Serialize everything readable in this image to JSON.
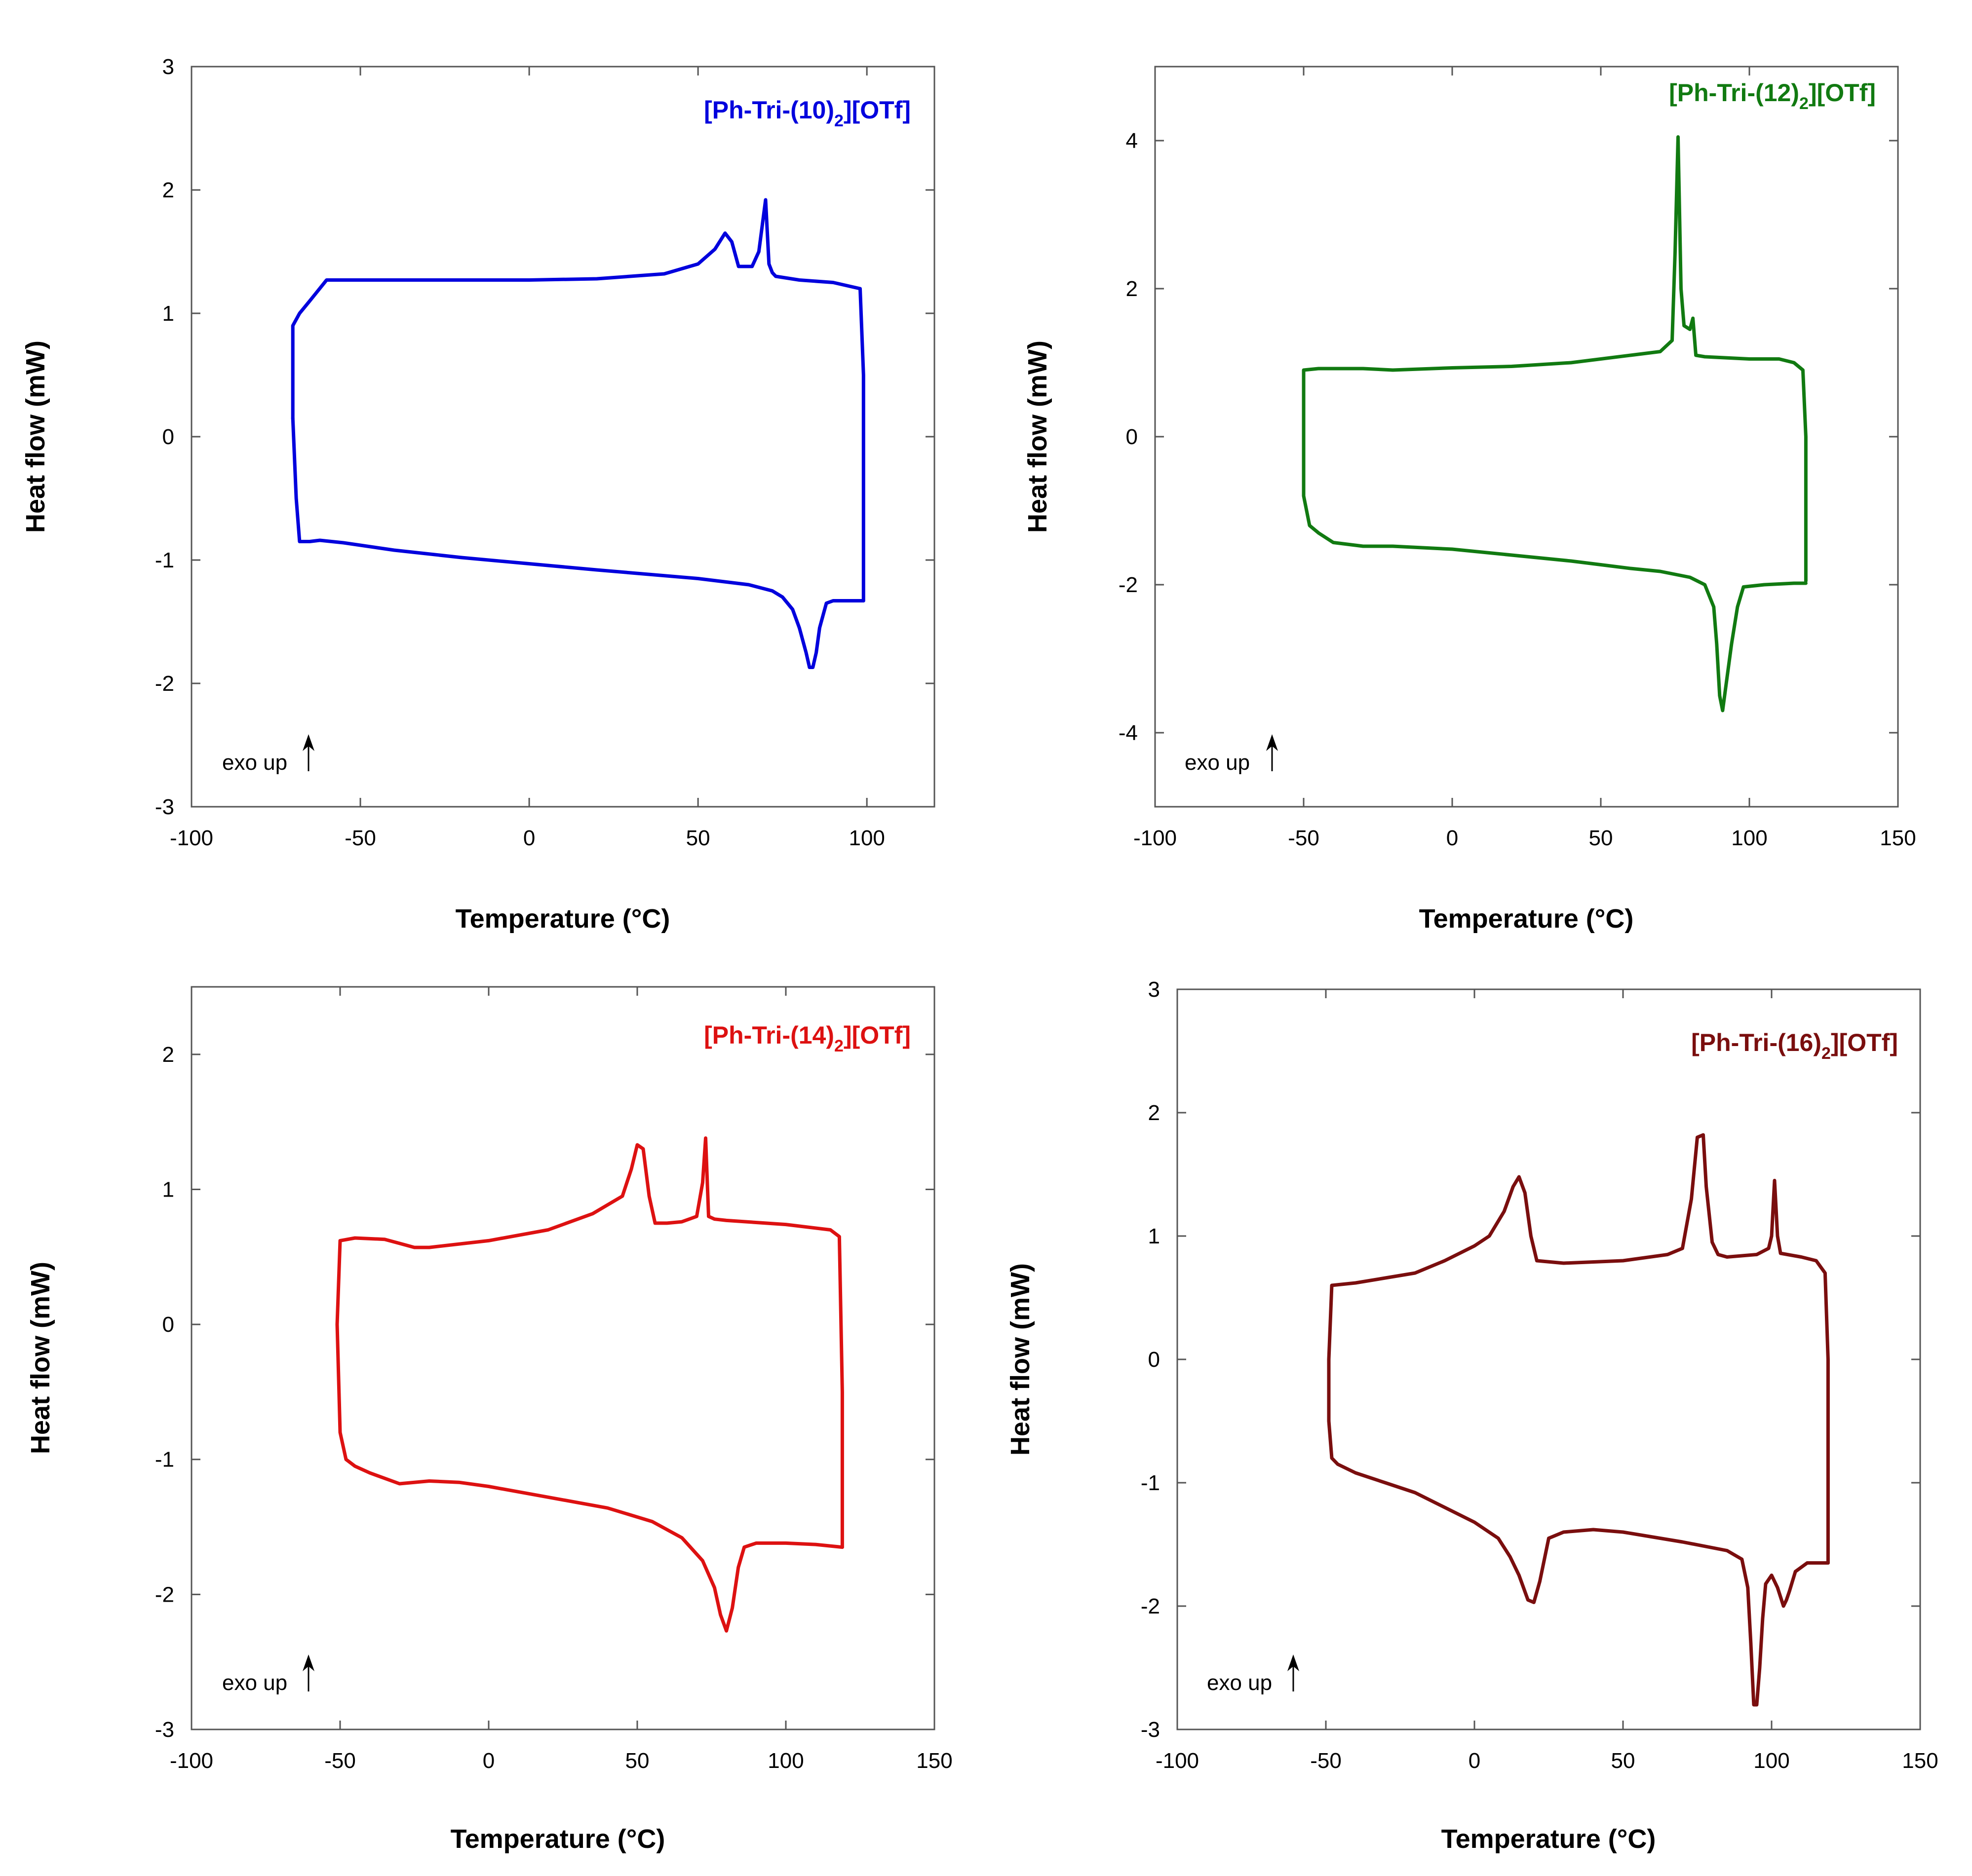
{
  "chart_data": [
    {
      "type": "line",
      "id": "p10",
      "series_title": {
        "prefix": "[Ph-Tri-(10)",
        "subscript": "2",
        "suffix": "][OTf]"
      },
      "color": "#0000dd",
      "xlabel": "Temperature (°C)",
      "ylabel": "Heat flow (mW)",
      "xlim": [
        -100,
        120
      ],
      "ylim": [
        -3,
        3
      ],
      "xticks": [
        -100,
        -50,
        0,
        50,
        100
      ],
      "yticks": [
        -3,
        -2,
        -1,
        0,
        1,
        2,
        3
      ],
      "annotation": "exo up",
      "series": [
        {
          "name": "heating",
          "x": [
            -70,
            -70,
            -68,
            -65,
            -60,
            -45,
            -20,
            0,
            20,
            40,
            50,
            55,
            58,
            60,
            62,
            66,
            68,
            70,
            71,
            72,
            73,
            80,
            90,
            98,
            99,
            99,
            99
          ],
          "y": [
            0.15,
            0.9,
            1.0,
            1.1,
            1.27,
            1.27,
            1.27,
            1.27,
            1.28,
            1.32,
            1.4,
            1.52,
            1.65,
            1.58,
            1.38,
            1.38,
            1.5,
            1.92,
            1.4,
            1.33,
            1.3,
            1.27,
            1.25,
            1.2,
            0.5,
            -0.5,
            -1.33
          ]
        },
        {
          "name": "cooling",
          "x": [
            99,
            95,
            90,
            88,
            86,
            85,
            84,
            83,
            82,
            80,
            78,
            75,
            72,
            65,
            50,
            20,
            0,
            -20,
            -40,
            -55,
            -62,
            -65,
            -68,
            -69,
            -70
          ],
          "y": [
            -1.33,
            -1.33,
            -1.33,
            -1.35,
            -1.55,
            -1.75,
            -1.87,
            -1.87,
            -1.75,
            -1.55,
            -1.4,
            -1.3,
            -1.25,
            -1.2,
            -1.15,
            -1.08,
            -1.03,
            -0.98,
            -0.92,
            -0.86,
            -0.84,
            -0.85,
            -0.85,
            -0.5,
            0.15
          ]
        }
      ]
    },
    {
      "type": "line",
      "id": "p12",
      "series_title": {
        "prefix": "[Ph-Tri-(12)",
        "subscript": "2",
        "suffix": "][OTf]"
      },
      "color": "#117a11",
      "xlabel": "Temperature (°C)",
      "ylabel": "Heat flow (mW)",
      "xlim": [
        -100,
        150
      ],
      "ylim": [
        -5,
        5
      ],
      "xticks": [
        -100,
        -50,
        0,
        50,
        100,
        150
      ],
      "yticks": [
        -4,
        -2,
        0,
        2,
        4
      ],
      "annotation": "exo up",
      "series": [
        {
          "name": "heating",
          "x": [
            -50,
            -50,
            -45,
            -30,
            -20,
            0,
            20,
            40,
            60,
            70,
            74,
            75,
            76,
            77,
            78,
            80,
            81,
            82,
            85,
            100,
            110,
            115,
            118,
            119,
            119
          ],
          "y": [
            0.0,
            0.9,
            0.92,
            0.92,
            0.9,
            0.93,
            0.95,
            1.0,
            1.1,
            1.15,
            1.3,
            2.5,
            4.05,
            2.0,
            1.5,
            1.45,
            1.6,
            1.1,
            1.08,
            1.05,
            1.05,
            1.0,
            0.9,
            0.0,
            -1.95
          ]
        },
        {
          "name": "cooling",
          "x": [
            119,
            115,
            105,
            98,
            96,
            94,
            92,
            91,
            90,
            89,
            88,
            85,
            80,
            70,
            60,
            40,
            20,
            0,
            -20,
            -30,
            -40,
            -45,
            -48,
            -50,
            -50
          ],
          "y": [
            -1.98,
            -1.98,
            -2.0,
            -2.03,
            -2.3,
            -2.8,
            -3.4,
            -3.7,
            -3.5,
            -2.8,
            -2.3,
            -2.0,
            -1.9,
            -1.82,
            -1.78,
            -1.68,
            -1.6,
            -1.52,
            -1.48,
            -1.48,
            -1.43,
            -1.3,
            -1.2,
            -0.8,
            0.0
          ]
        }
      ]
    },
    {
      "type": "line",
      "id": "p14",
      "series_title": {
        "prefix": "[Ph-Tri-(14)",
        "subscript": "2",
        "suffix": "][OTf]"
      },
      "color": "#dd1111",
      "xlabel": "Temperature (°C)",
      "ylabel": "Heat flow (mW)",
      "xlim": [
        -100,
        150
      ],
      "ylim": [
        -3,
        2.5
      ],
      "xticks": [
        -100,
        -50,
        0,
        50,
        100,
        150
      ],
      "yticks": [
        -3,
        -2,
        -1,
        0,
        1,
        2
      ],
      "annotation": "exo up",
      "series": [
        {
          "name": "heating",
          "x": [
            -51,
            -50,
            -45,
            -35,
            -30,
            -25,
            -20,
            0,
            20,
            35,
            45,
            48,
            50,
            52,
            54,
            56,
            60,
            65,
            70,
            72,
            73,
            74,
            76,
            80,
            100,
            115,
            118,
            119,
            119
          ],
          "y": [
            0.0,
            0.62,
            0.64,
            0.63,
            0.6,
            0.57,
            0.57,
            0.62,
            0.7,
            0.82,
            0.95,
            1.15,
            1.33,
            1.3,
            0.95,
            0.75,
            0.75,
            0.76,
            0.8,
            1.05,
            1.38,
            0.8,
            0.78,
            0.77,
            0.74,
            0.7,
            0.65,
            -0.5,
            -1.65
          ]
        },
        {
          "name": "cooling",
          "x": [
            119,
            110,
            100,
            90,
            86,
            84,
            82,
            80,
            78,
            76,
            72,
            65,
            55,
            40,
            20,
            0,
            -10,
            -20,
            -30,
            -40,
            -45,
            -48,
            -50,
            -51
          ],
          "y": [
            -1.65,
            -1.63,
            -1.62,
            -1.62,
            -1.65,
            -1.8,
            -2.1,
            -2.27,
            -2.15,
            -1.95,
            -1.75,
            -1.58,
            -1.46,
            -1.36,
            -1.28,
            -1.2,
            -1.17,
            -1.16,
            -1.18,
            -1.1,
            -1.05,
            -1.0,
            -0.8,
            0.0
          ]
        }
      ]
    },
    {
      "type": "line",
      "id": "p16",
      "series_title": {
        "prefix": "[Ph-Tri-(16)",
        "subscript": "2",
        "suffix": "][OTf]"
      },
      "color": "#7a0e0e",
      "xlabel": "Temperature (°C)",
      "ylabel": "Heat flow (mW)",
      "xlim": [
        -100,
        150
      ],
      "ylim": [
        -3,
        3
      ],
      "xticks": [
        -100,
        -50,
        0,
        50,
        100,
        150
      ],
      "yticks": [
        -3,
        -2,
        -1,
        0,
        1,
        2,
        3
      ],
      "annotation": "exo up",
      "series": [
        {
          "name": "heating",
          "x": [
            -49,
            -48,
            -40,
            -30,
            -20,
            -10,
            0,
            5,
            10,
            13,
            15,
            17,
            19,
            21,
            30,
            50,
            65,
            70,
            73,
            75,
            77,
            78,
            80,
            82,
            85,
            95,
            99,
            100,
            101,
            102,
            103,
            110,
            115,
            118,
            119,
            119
          ],
          "y": [
            0.0,
            0.6,
            0.62,
            0.66,
            0.7,
            0.8,
            0.92,
            1.0,
            1.2,
            1.4,
            1.48,
            1.35,
            1.0,
            0.8,
            0.78,
            0.8,
            0.85,
            0.9,
            1.3,
            1.8,
            1.82,
            1.4,
            0.95,
            0.85,
            0.83,
            0.85,
            0.9,
            1.0,
            1.45,
            1.0,
            0.86,
            0.83,
            0.8,
            0.7,
            0.0,
            -1.65
          ]
        },
        {
          "name": "cooling",
          "x": [
            119,
            112,
            108,
            106,
            105,
            104,
            102,
            100,
            98,
            97,
            96,
            95,
            94,
            93,
            92,
            90,
            85,
            70,
            50,
            40,
            30,
            25,
            22,
            20,
            18,
            15,
            12,
            8,
            0,
            -10,
            -20,
            -30,
            -40,
            -46,
            -48,
            -49,
            -49
          ],
          "y": [
            -1.65,
            -1.65,
            -1.72,
            -1.88,
            -1.95,
            -2.0,
            -1.85,
            -1.75,
            -1.82,
            -2.1,
            -2.5,
            -2.8,
            -2.8,
            -2.3,
            -1.85,
            -1.62,
            -1.55,
            -1.48,
            -1.4,
            -1.38,
            -1.4,
            -1.45,
            -1.8,
            -1.97,
            -1.95,
            -1.75,
            -1.6,
            -1.45,
            -1.32,
            -1.2,
            -1.08,
            -1.0,
            -0.92,
            -0.85,
            -0.8,
            -0.5,
            0.0
          ]
        }
      ]
    }
  ]
}
